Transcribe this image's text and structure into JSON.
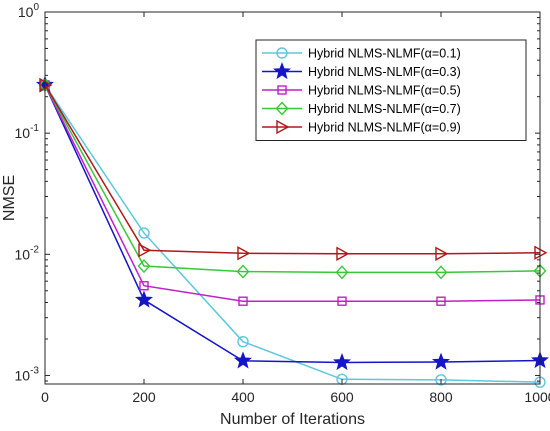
{
  "chart_data": {
    "type": "line",
    "title": "",
    "xlabel": "Number of Iterations",
    "ylabel": "NMSE",
    "xlim": [
      0,
      1000
    ],
    "ylim": [
      0.00085,
      1
    ],
    "yscale": "log",
    "grid": false,
    "legend_position": "top-right",
    "x_ticks": [
      0,
      200,
      400,
      600,
      800,
      1000
    ],
    "y_ticks": [
      {
        "value": 0.001,
        "base": "10",
        "exp": "-3"
      },
      {
        "value": 0.01,
        "base": "10",
        "exp": "-2"
      },
      {
        "value": 0.1,
        "base": "10",
        "exp": "-1"
      },
      {
        "value": 1,
        "base": "10",
        "exp": "0"
      }
    ],
    "x": [
      0,
      200,
      400,
      600,
      800,
      1000
    ],
    "series": [
      {
        "name": "Hybrid NLMS-NLMF(α=0.1)",
        "color": "#5BC8DC",
        "marker": "circle",
        "values": [
          0.25,
          0.015,
          0.0019,
          0.00093,
          0.00092,
          0.00088
        ]
      },
      {
        "name": "Hybrid NLMS-NLMF(α=0.3)",
        "color": "#1515C8",
        "marker": "star",
        "values": [
          0.25,
          0.0042,
          0.00132,
          0.00128,
          0.00129,
          0.00133
        ]
      },
      {
        "name": "Hybrid NLMS-NLMF(α=0.5)",
        "color": "#C020C8",
        "marker": "square",
        "values": [
          0.25,
          0.0055,
          0.0041,
          0.0041,
          0.0041,
          0.0042
        ]
      },
      {
        "name": "Hybrid NLMS-NLMF(α=0.7)",
        "color": "#38C838",
        "marker": "diamond",
        "values": [
          0.25,
          0.008,
          0.0072,
          0.0071,
          0.0071,
          0.0073
        ]
      },
      {
        "name": "Hybrid NLMS-NLMF(α=0.9)",
        "color": "#B01818",
        "marker": "triangle-right",
        "values": [
          0.25,
          0.0108,
          0.0102,
          0.0101,
          0.0101,
          0.0103
        ]
      }
    ]
  }
}
